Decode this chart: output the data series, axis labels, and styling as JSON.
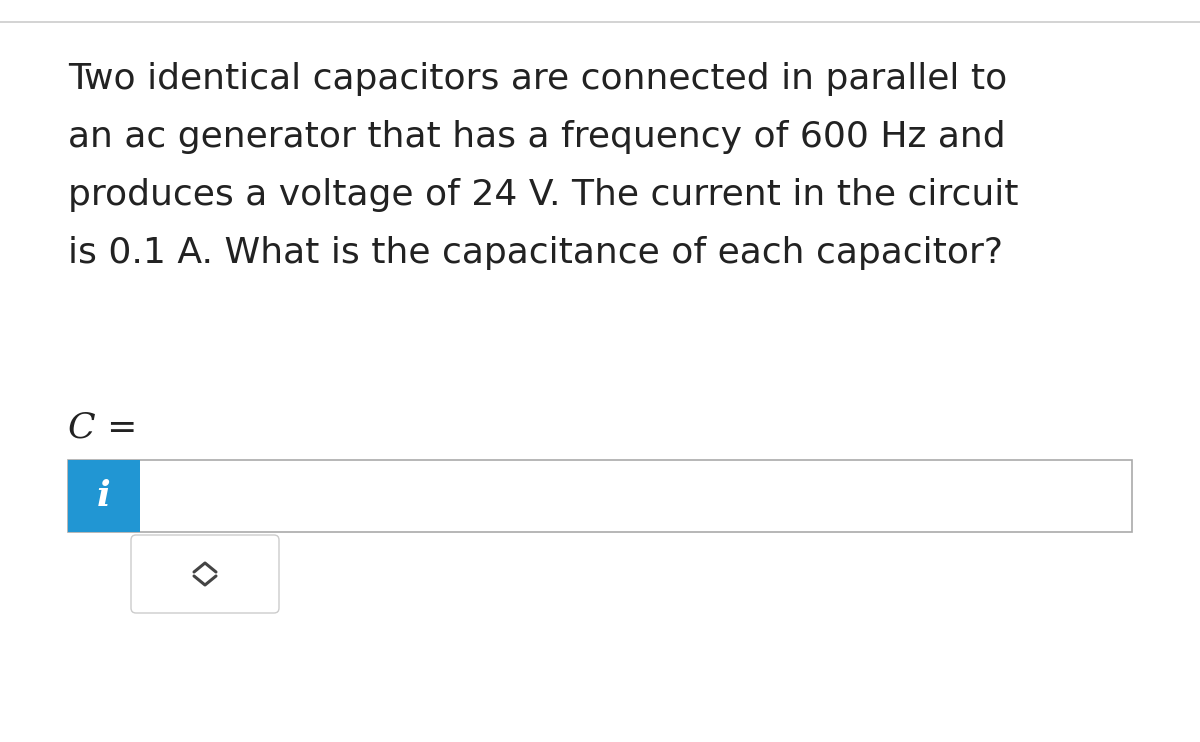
{
  "background_color": "#f0f0f0",
  "main_bg": "#ffffff",
  "question_text_lines": [
    "Two identical capacitors are connected in parallel to",
    "an ac generator that has a frequency of 600 Hz and",
    "produces a voltage of 24 V. The current in the circuit",
    "is 0.1 A. What is the capacitance of each capacitor?"
  ],
  "label_text": "C =",
  "label_fontsize": 26,
  "question_fontsize": 26,
  "text_color": "#222222",
  "blue_color": "#2196d3",
  "info_icon_color": "#ffffff",
  "info_icon_text": "i",
  "border_color": "#cccccc",
  "input_box_border": "#aaaaaa",
  "dropdown_border": "#cccccc",
  "dropdown_bg": "#ffffff",
  "arrow_color": "#444444",
  "top_line_color": "#cccccc"
}
